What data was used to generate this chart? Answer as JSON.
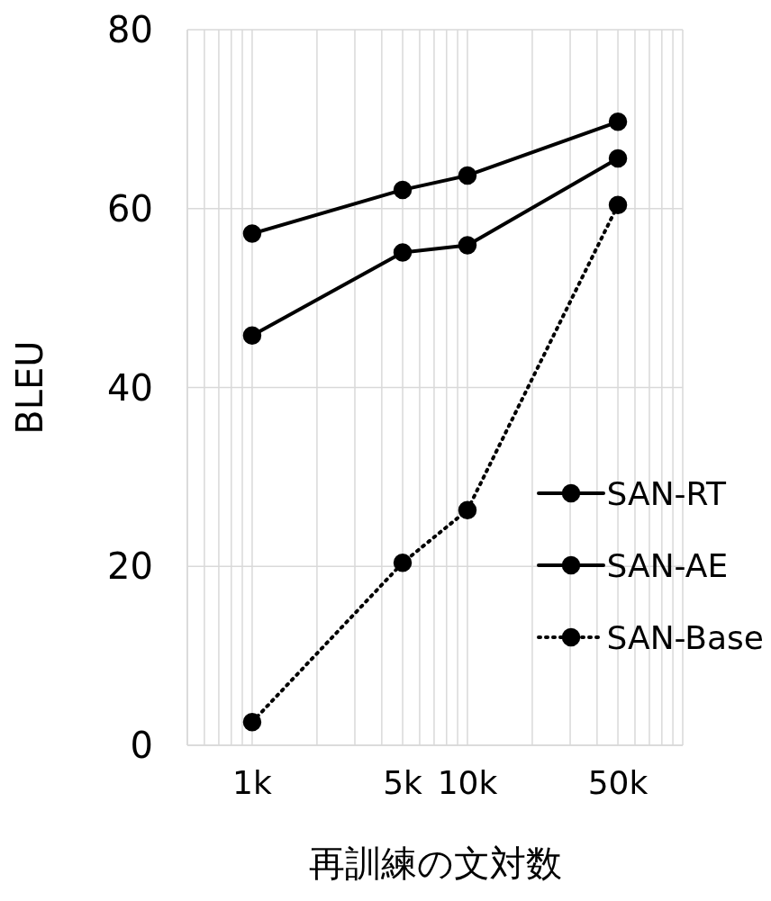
{
  "chart_data": {
    "type": "line",
    "xlabel": "再訓練の文対数",
    "ylabel": "BLEU",
    "x": [
      1000,
      5000,
      10000,
      50000
    ],
    "log": "x",
    "xlim": [
      500,
      100000
    ],
    "xticks": [
      {
        "value": 500,
        "label": null
      },
      {
        "value": 600,
        "label": null
      },
      {
        "value": 700,
        "label": null
      },
      {
        "value": 800,
        "label": null
      },
      {
        "value": 900,
        "label": null
      },
      {
        "value": 1000,
        "label": "1k"
      },
      {
        "value": 2000,
        "label": null
      },
      {
        "value": 3000,
        "label": null
      },
      {
        "value": 4000,
        "label": null
      },
      {
        "value": 5000,
        "label": "5k"
      },
      {
        "value": 6000,
        "label": null
      },
      {
        "value": 7000,
        "label": null
      },
      {
        "value": 8000,
        "label": null
      },
      {
        "value": 9000,
        "label": null
      },
      {
        "value": 10000,
        "label": "10k"
      },
      {
        "value": 20000,
        "label": null
      },
      {
        "value": 30000,
        "label": null
      },
      {
        "value": 40000,
        "label": null
      },
      {
        "value": 50000,
        "label": "50k"
      },
      {
        "value": 60000,
        "label": null
      },
      {
        "value": 70000,
        "label": null
      },
      {
        "value": 80000,
        "label": null
      },
      {
        "value": 90000,
        "label": null
      },
      {
        "value": 100000,
        "label": null
      }
    ],
    "ylim": [
      0,
      80
    ],
    "yticks": [
      0,
      20,
      40,
      60,
      80
    ],
    "grid": true,
    "legend": "right",
    "marker": "circle",
    "series": [
      {
        "name": "SAN-RT",
        "color": "#000000",
        "line_style": "solid",
        "values": [
          57.2,
          62.1,
          63.7,
          69.7
        ]
      },
      {
        "name": "SAN-AE",
        "color": "#000000",
        "line_style": "solid",
        "values": [
          45.8,
          55.1,
          55.9,
          65.6
        ]
      },
      {
        "name": "SAN-Base",
        "color": "#000000",
        "line_style": "dotted",
        "values": [
          2.6,
          20.4,
          26.3,
          60.4
        ]
      }
    ]
  }
}
